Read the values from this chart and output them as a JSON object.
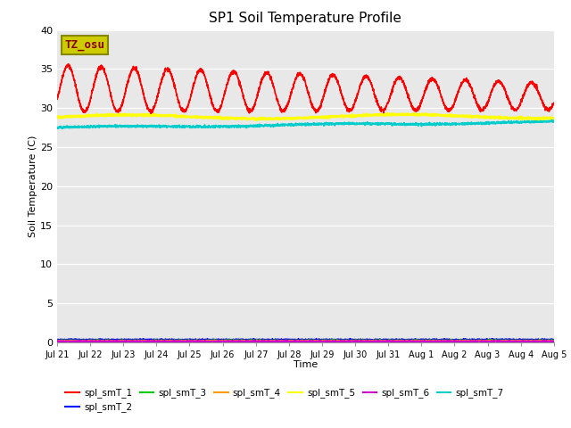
{
  "title": "SP1 Soil Temperature Profile",
  "xlabel": "Time",
  "ylabel": "Soil Temperature (C)",
  "bg_color": "#e8e8e8",
  "ylim": [
    0,
    40
  ],
  "yticks": [
    0,
    5,
    10,
    15,
    20,
    25,
    30,
    35,
    40
  ],
  "xtick_labels": [
    "Jul 21",
    "Jul 22",
    "Jul 23",
    "Jul 24",
    "Jul 25",
    "Jul 26",
    "Jul 27",
    "Jul 28",
    "Jul 29",
    "Jul 30",
    "Jul 31",
    "Aug 1",
    "Aug 2",
    "Aug 3",
    "Aug 4",
    "Aug 5"
  ],
  "series": {
    "spl_smT_1": {
      "color": "#ff0000"
    },
    "spl_smT_2": {
      "color": "#0000ff"
    },
    "spl_smT_3": {
      "color": "#00cc00"
    },
    "spl_smT_4": {
      "color": "#ff9900"
    },
    "spl_smT_5": {
      "color": "#ffff00"
    },
    "spl_smT_6": {
      "color": "#cc00cc"
    },
    "spl_smT_7": {
      "color": "#00cccc"
    }
  },
  "annotation_text": "TZ_osu",
  "annotation_color": "#880000",
  "annotation_bg": "#cccc00",
  "annotation_edge": "#888800"
}
